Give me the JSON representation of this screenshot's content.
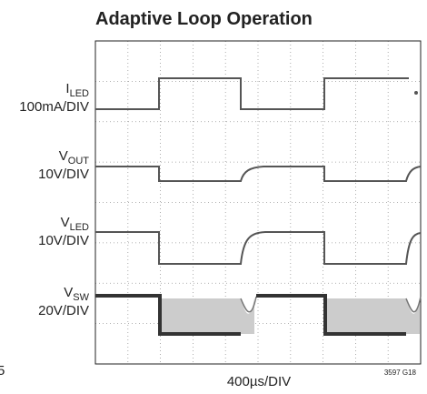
{
  "title": "Adaptive Loop Operation",
  "channels": [
    {
      "symbol": "I",
      "sub": "LED",
      "scale": "100mA/DIV"
    },
    {
      "symbol": "V",
      "sub": "OUT",
      "scale": "10V/DIV"
    },
    {
      "symbol": "V",
      "sub": "LED",
      "scale": "10V/DIV"
    },
    {
      "symbol": "V",
      "sub": "SW",
      "scale": "20V/DIV"
    }
  ],
  "x_label": "400µs/DIV",
  "figure_code": "3597 G18",
  "side_mark": "5"
}
